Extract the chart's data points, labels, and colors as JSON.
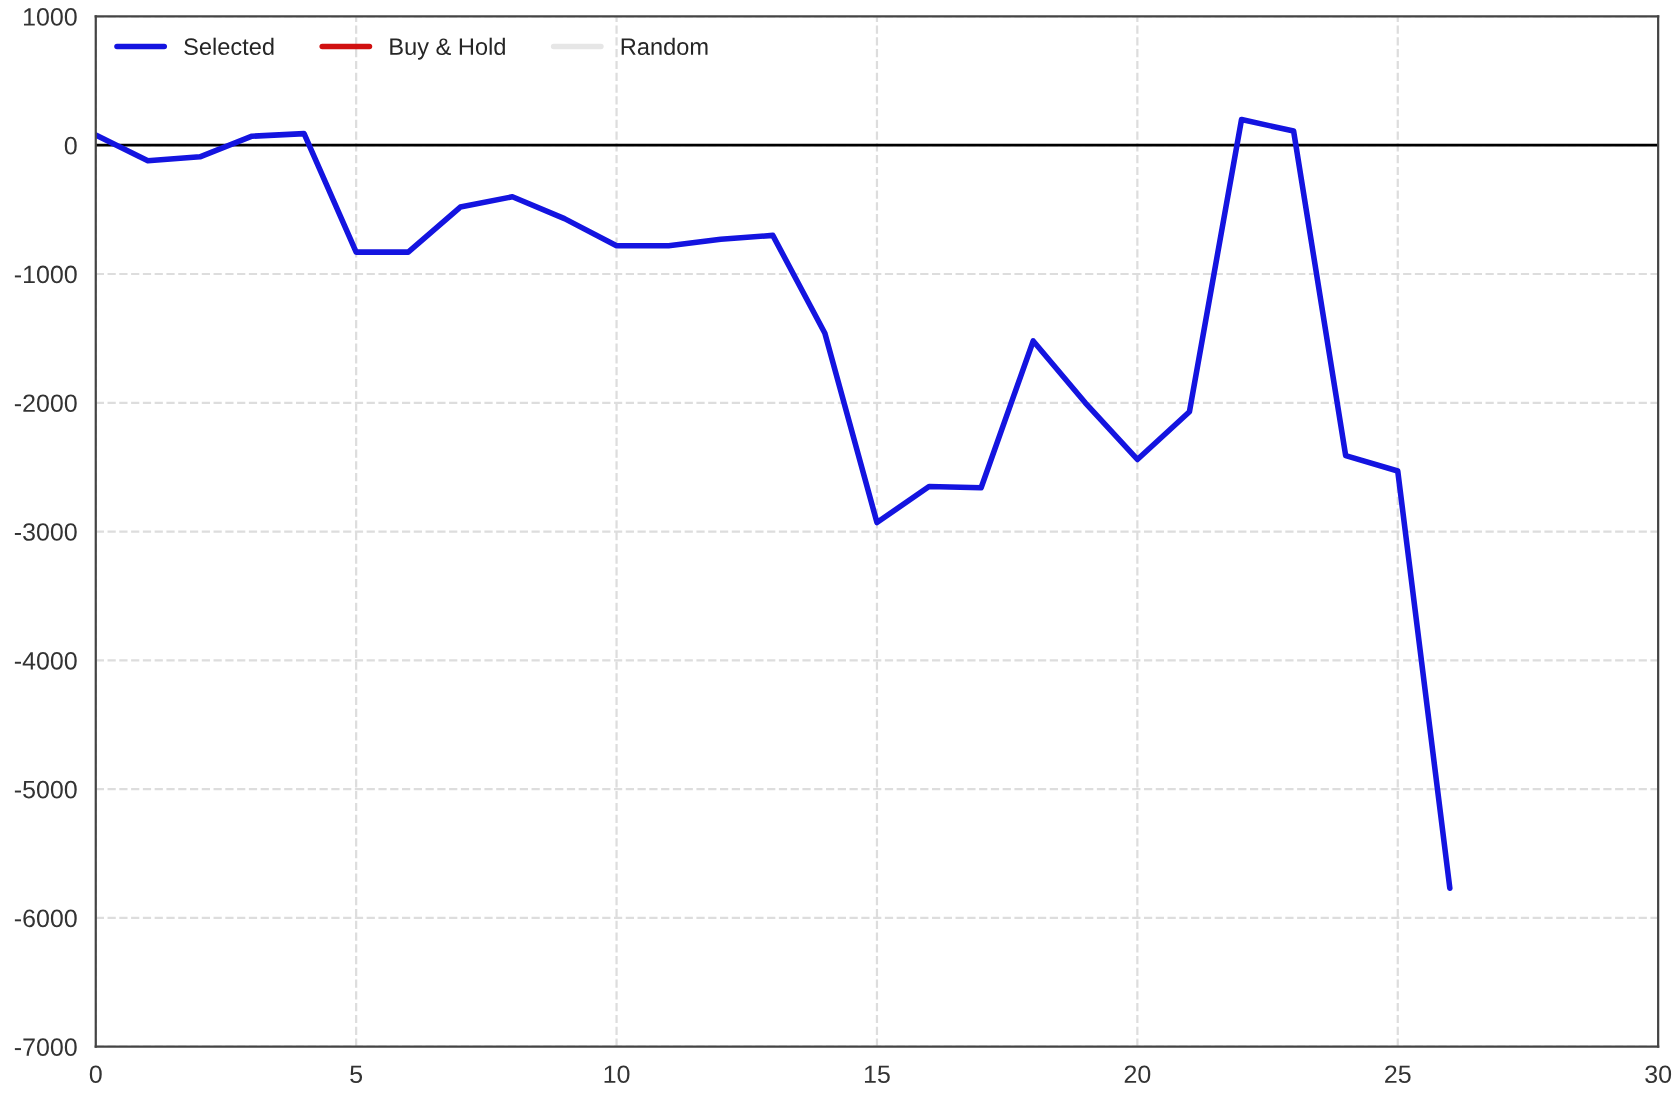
{
  "chart_data": {
    "type": "line",
    "x": [
      0,
      1,
      2,
      3,
      4,
      5,
      6,
      7,
      8,
      9,
      10,
      11,
      12,
      13,
      14,
      15,
      16,
      17,
      18,
      19,
      20,
      21,
      22,
      23,
      24,
      25,
      26
    ],
    "series": [
      {
        "name": "Selected",
        "color": "#1414e0",
        "values": [
          80,
          -120,
          -90,
          70,
          90,
          -830,
          -830,
          -480,
          -400,
          -570,
          -780,
          -780,
          -730,
          -700,
          -1460,
          -2930,
          -2650,
          -2660,
          -1520,
          -2000,
          -2440,
          -2070,
          200,
          110,
          -2410,
          -2530,
          -5770
        ]
      },
      {
        "name": "Buy & Hold",
        "color": "#d01010",
        "values": [
          null,
          null,
          null,
          null,
          null,
          null,
          null,
          null,
          null,
          null,
          null,
          null,
          null,
          null,
          null,
          null,
          null,
          null,
          null,
          null,
          null,
          null,
          null,
          null,
          null,
          null,
          null
        ]
      },
      {
        "name": "Random",
        "color": "#e6e6e6",
        "values": [
          null,
          null,
          null,
          null,
          null,
          null,
          null,
          null,
          null,
          null,
          null,
          null,
          null,
          null,
          null,
          null,
          null,
          null,
          null,
          null,
          null,
          null,
          null,
          null,
          null,
          null,
          null
        ]
      }
    ],
    "xlim": [
      0,
      30
    ],
    "xticks": [
      0,
      5,
      10,
      15,
      20,
      25,
      30
    ],
    "ylim": [
      -7000,
      1000
    ],
    "yticks": [
      -7000,
      -6000,
      -5000,
      -4000,
      -3000,
      -2000,
      -1000,
      0,
      1000
    ],
    "ref_lines": [
      {
        "axis": "y",
        "value": 0,
        "color": "#000000"
      }
    ],
    "grid": true,
    "legend": "top left",
    "line_style": "solid",
    "marker": "none"
  }
}
